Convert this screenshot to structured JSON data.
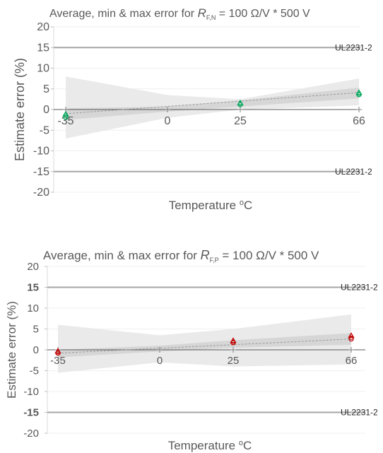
{
  "chart_data": [
    {
      "type": "line",
      "title": {
        "prefix": "Average, min & max error for ",
        "symbol": "R",
        "subscript": "F,N",
        "suffix": " = 100 Ω/V * 500 V"
      },
      "xlabel": {
        "text": "Temperature ",
        "sup": "o",
        "unit": "C"
      },
      "ylabel": "Estimate error  (%)",
      "ylim": [
        -20,
        20
      ],
      "yticks": [
        "20",
        "15",
        "10",
        "5",
        "0",
        "-5",
        "-10",
        "-15",
        "-20"
      ],
      "xticks": [
        "-35",
        "0",
        "25",
        "66"
      ],
      "x": [
        -35,
        0,
        25,
        66
      ],
      "series": [
        {
          "values": [
            -1.2,
            null,
            1.5,
            4.0
          ]
        },
        {
          "values": [
            -1.9,
            null,
            1.2,
            3.6
          ]
        },
        {
          "values": [
            -1.5,
            null,
            1.4,
            3.8
          ]
        }
      ],
      "trend": {
        "x": [
          -35,
          66
        ],
        "y": [
          -1.0,
          4.1
        ]
      },
      "band_outer": {
        "upper": [
          8.0,
          3.5,
          2.5,
          7.5
        ],
        "lower": [
          -7.0,
          -2.0,
          0.0,
          1.0
        ]
      },
      "band_inner": {
        "upper": [
          0.3,
          0.7,
          2.2,
          5.3
        ],
        "lower": [
          -2.5,
          -0.5,
          0.7,
          2.7
        ]
      },
      "limits": [
        {
          "value": 15,
          "label": "UL2231-2"
        },
        {
          "value": -15,
          "label": "UL2231-2"
        }
      ],
      "marker_color": "#00a65a"
    },
    {
      "type": "line",
      "title": {
        "prefix": "Average, min & max error for ",
        "symbol": "R",
        "subscript": "F,P",
        "suffix": " = 100 Ω/V * 500 V"
      },
      "xlabel": {
        "text": "Temperature ",
        "sup": "o",
        "unit": "C"
      },
      "ylabel": "Estimate error  (%)",
      "ylim": [
        -20,
        20
      ],
      "yticks": [
        "20",
        "15",
        "10",
        "5",
        "0",
        "-5",
        "-10",
        "-15",
        "-20"
      ],
      "bold_yticks": [
        "15",
        "-15"
      ],
      "xticks": [
        "-35",
        "0",
        "25",
        "66"
      ],
      "x": [
        -35,
        0,
        25,
        66
      ],
      "series": [
        {
          "values": [
            -0.4,
            null,
            2.1,
            3.3
          ]
        },
        {
          "values": [
            -0.8,
            null,
            1.7,
            2.6
          ]
        },
        {
          "values": [
            -0.6,
            null,
            1.9,
            2.9
          ]
        }
      ],
      "trend": {
        "x": [
          -35,
          66
        ],
        "y": [
          -0.8,
          2.6
        ]
      },
      "band_outer": {
        "upper": [
          6.0,
          3.5,
          5.0,
          8.5
        ],
        "lower": [
          -5.5,
          -3.0,
          -4.0,
          -3.5
        ]
      },
      "band_inner": {
        "upper": [
          0.0,
          1.0,
          2.3,
          4.0
        ],
        "lower": [
          -1.8,
          -0.4,
          0.5,
          1.2
        ]
      },
      "limits": [
        {
          "value": 15,
          "label": "UL2231-2"
        },
        {
          "value": -15,
          "label": "UL2231-2"
        }
      ],
      "marker_color": "#c00000"
    }
  ]
}
